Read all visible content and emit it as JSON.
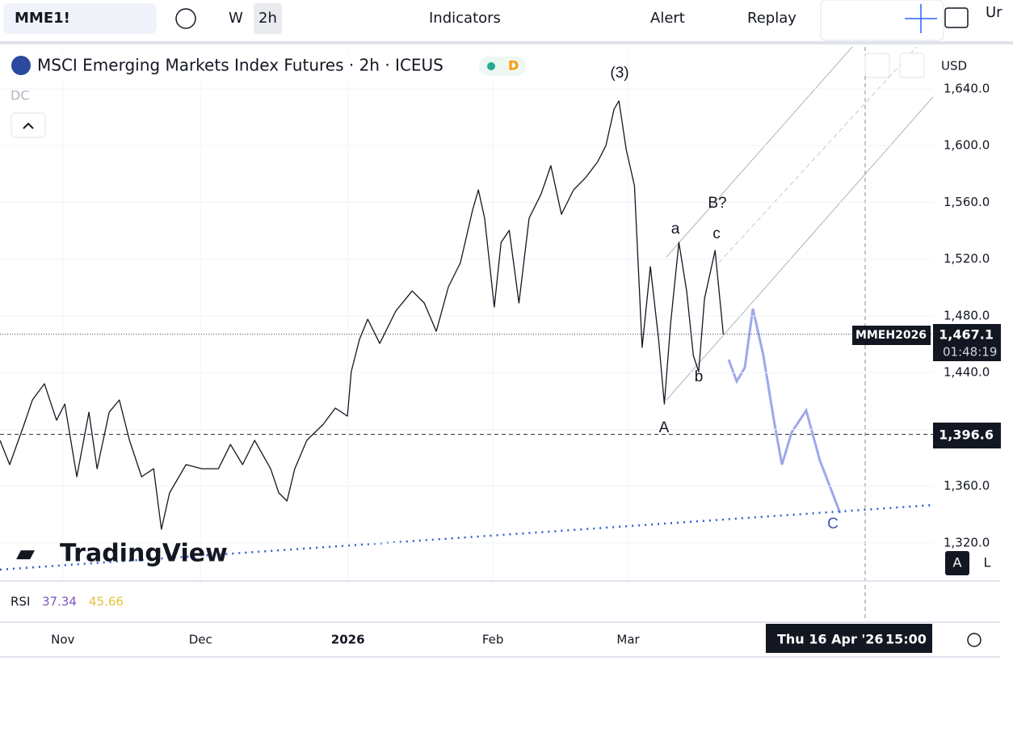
{
  "toolbar": {
    "symbol": "MME1!",
    "interval_w": "W",
    "interval": "2h",
    "indicators": "Indicators",
    "alert": "Alert",
    "replay": "Replay",
    "cut": "Ur"
  },
  "legend": {
    "title": "MSCI Emerging Markets Index Futures · 2h · ICEUS",
    "badge": "D",
    "dc": "DC"
  },
  "rsi": {
    "label": "RSI",
    "v1": "37.34",
    "v2": "45.66"
  },
  "currency": "USD",
  "symbol_tag": "MMEH2026",
  "countdown": "01:48:19",
  "crosshair_time": "Thu 16 Apr '26",
  "crosshair_clock": "15:00",
  "scale_a": "A",
  "scale_l": "L",
  "logo": "TradingView",
  "chart_data": {
    "type": "line",
    "annotations": [
      "(3)",
      "a",
      "B?",
      "c",
      "b",
      "A",
      "C"
    ],
    "series": [
      {
        "color": "#131722",
        "x": [
          -13,
          -11,
          -8,
          -6.3,
          -3.8,
          -1.3,
          0.4,
          2.9,
          5.4,
          7.1,
          9.6,
          11.7,
          13.8,
          16.3,
          18.8,
          20.4,
          22.1,
          25.5,
          28.8,
          32.2,
          34.7,
          37.2,
          39.7,
          43,
          44.7,
          46.4,
          48,
          50.5,
          53.9,
          56.4,
          58.9,
          59.7,
          61.4,
          63.1,
          65.6,
          68.9,
          72.3,
          74.8,
          77.3,
          79.8,
          82.3,
          84.8,
          86,
          87.3,
          89.3,
          90.7,
          92.4,
          94.4,
          96.5,
          99,
          101,
          103.2,
          105.7,
          108.2,
          110.7,
          112.4,
          114.1,
          115.1,
          116.6,
          118.3,
          119.9,
          121.6,
          123.3,
          124.5,
          125.8,
          127.5,
          129.1,
          130.5,
          131.6,
          132.8,
          135,
          136.7
        ],
        "values": [
          1392.3,
          1375.2,
          1403.7,
          1420.8,
          1432.2,
          1406.5,
          1417.9,
          1366.7,
          1412.2,
          1372.3,
          1412.2,
          1420.8,
          1392.3,
          1366.7,
          1372.3,
          1329.6,
          1355.3,
          1375.2,
          1372.3,
          1372.3,
          1389.4,
          1375.2,
          1392.3,
          1372.3,
          1355.3,
          1349.6,
          1372.3,
          1392.3,
          1403.7,
          1415.1,
          1409.4,
          1440.7,
          1463.5,
          1477.7,
          1460.6,
          1483.4,
          1497.6,
          1489.1,
          1469.2,
          1500.5,
          1517.6,
          1554.6,
          1568.8,
          1548.9,
          1486.2,
          1531.8,
          1540.3,
          1489.1,
          1548.9,
          1566.0,
          1585.9,
          1551.7,
          1568.8,
          1577.4,
          1588.7,
          1600.1,
          1625.8,
          1631.5,
          1597.3,
          1571.7,
          1457.8,
          1514.7,
          1463.5,
          1417.9,
          1474.9,
          1531.8,
          1497.6,
          1452.1,
          1440.7,
          1492.1,
          1526.1,
          1467.1
        ]
      }
    ],
    "xlim": [
      -13,
      180.1
    ],
    "xticks": [
      {
        "value": 0,
        "label": "Nov"
      },
      {
        "value": 28.5,
        "label": "Dec"
      },
      {
        "value": 59,
        "label": "2026"
      },
      {
        "value": 89,
        "label": "Feb"
      },
      {
        "value": 117,
        "label": "Mar"
      }
    ],
    "ylim": [
      1293.8,
      1669.6
    ],
    "yticks": [
      {
        "value": 1320,
        "label": "1,320.0"
      },
      {
        "value": 1360,
        "label": "1,360.0"
      },
      {
        "value": 1400,
        "label": "1,400.0"
      },
      {
        "value": 1440,
        "label": "1,440.0"
      },
      {
        "value": 1480,
        "label": "1,480.0"
      },
      {
        "value": 1520,
        "label": "1,520.0"
      },
      {
        "value": 1560,
        "label": "1,560.0"
      },
      {
        "value": 1600,
        "label": "1,600.0"
      },
      {
        "value": 1640,
        "label": "1,640.0"
      }
    ],
    "hlines": [
      {
        "value": 1467.1,
        "label": "1,467.1"
      },
      {
        "value": 1396.6,
        "label": "1,396.6"
      }
    ],
    "grid": true
  }
}
